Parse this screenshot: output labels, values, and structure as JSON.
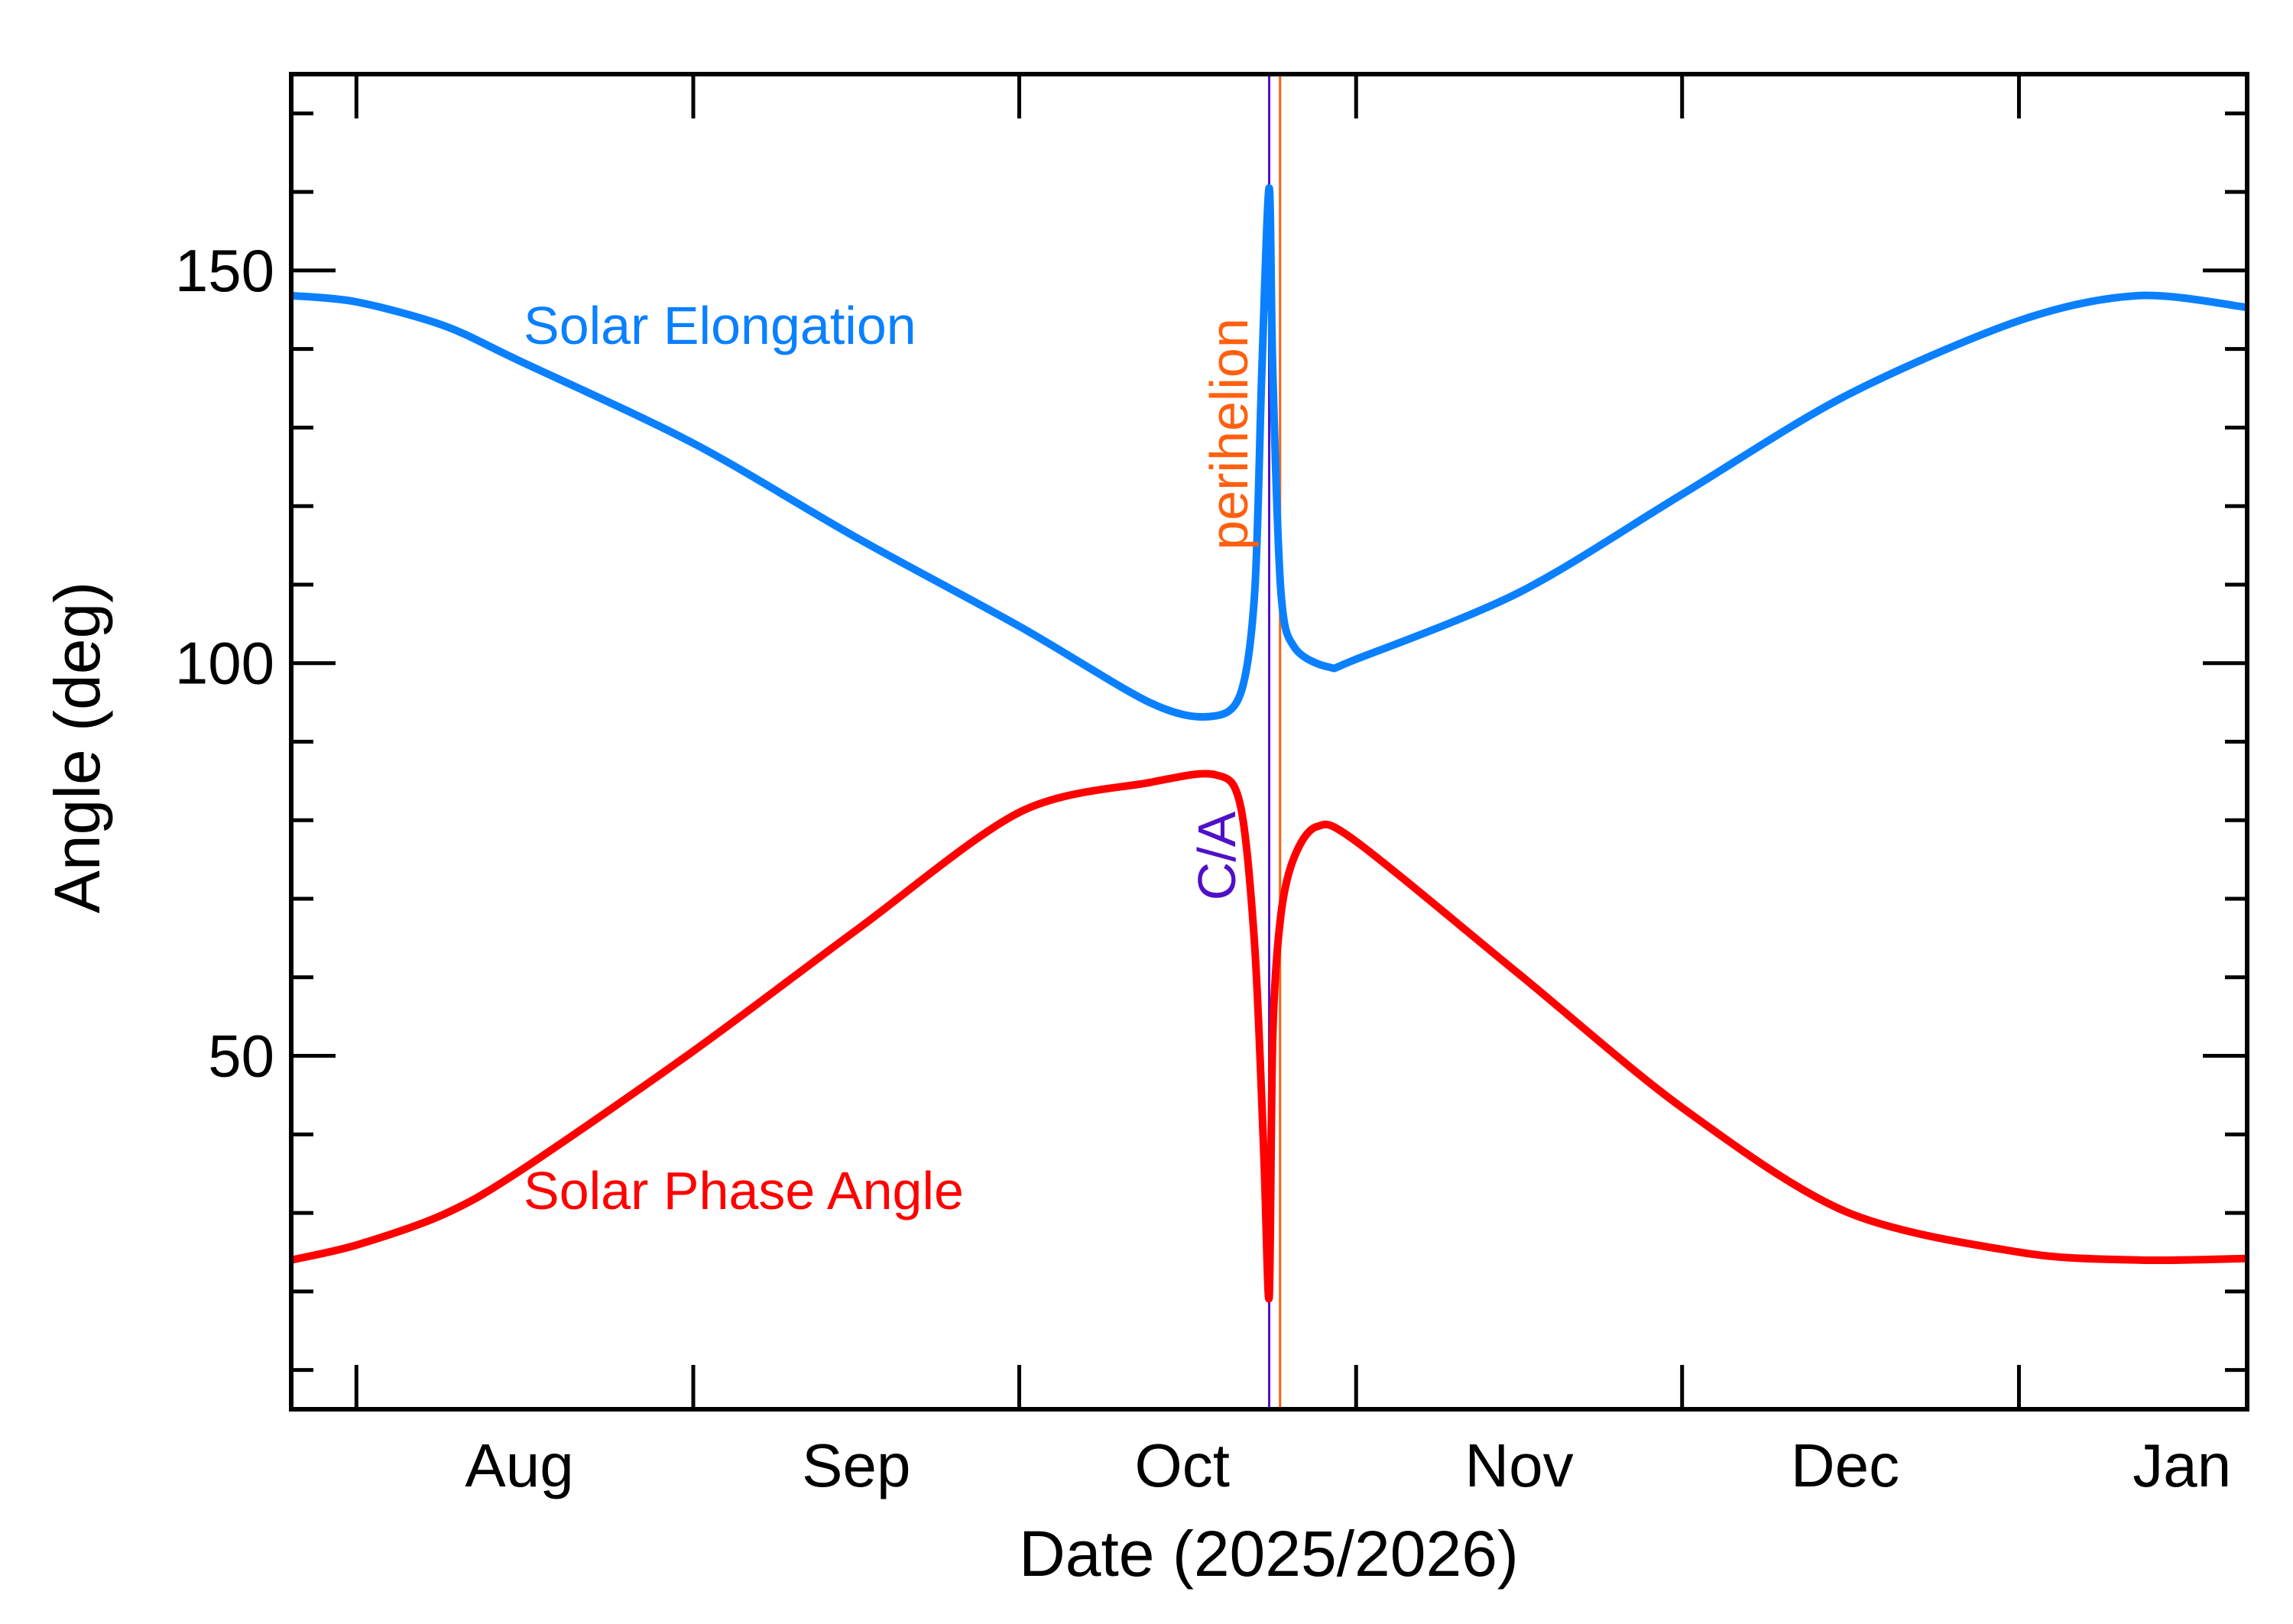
{
  "chart_data": {
    "type": "line",
    "title": "",
    "xlabel": "Date (2025/2026)",
    "ylabel": "Angle (deg)",
    "xlim": [
      "2025-07-26",
      "2026-01-22"
    ],
    "ylim": [
      5,
      175
    ],
    "grid": false,
    "x_ticks": [
      {
        "date": "2025-08-01",
        "label": "Aug"
      },
      {
        "date": "2025-09-01",
        "label": "Sep"
      },
      {
        "date": "2025-10-01",
        "label": "Oct"
      },
      {
        "date": "2025-11-01",
        "label": "Nov"
      },
      {
        "date": "2025-12-01",
        "label": "Dec"
      },
      {
        "date": "2026-01-01",
        "label": "Jan"
      }
    ],
    "y_ticks": [
      50,
      100,
      150
    ],
    "y_minor_step": 10,
    "series": [
      {
        "name": "Solar Elongation",
        "color": "#0a80ff",
        "points": [
          [
            "2025-07-26T00:00",
            146.8
          ],
          [
            "2025-08-01T00:00",
            146.0
          ],
          [
            "2025-08-09T00:00",
            143.0
          ],
          [
            "2025-08-16T00:00",
            138.5
          ],
          [
            "2025-09-01T00:00",
            128.0
          ],
          [
            "2025-09-16T00:00",
            116.0
          ],
          [
            "2025-10-01T00:00",
            104.7
          ],
          [
            "2025-10-13T00:00",
            95.0
          ],
          [
            "2025-10-18T12:00",
            93.2
          ],
          [
            "2025-10-21T08:00",
            96.0
          ],
          [
            "2025-10-22T16:00",
            109.0
          ],
          [
            "2025-10-23T08:00",
            137.6
          ],
          [
            "2025-10-24T00:00",
            160.5
          ],
          [
            "2025-10-24T08:00",
            137.0
          ],
          [
            "2025-10-25T02:00",
            109.0
          ],
          [
            "2025-10-26T08:00",
            102.0
          ],
          [
            "2025-10-29T12:00",
            99.5
          ],
          [
            "2025-11-01T00:00",
            100.5
          ],
          [
            "2025-11-16T00:00",
            109.0
          ],
          [
            "2025-12-01T00:00",
            121.5
          ],
          [
            "2025-12-16T00:00",
            134.0
          ],
          [
            "2026-01-01T00:00",
            143.6
          ],
          [
            "2026-01-12T00:00",
            146.8
          ],
          [
            "2026-01-22T00:00",
            145.3
          ]
        ]
      },
      {
        "name": "Solar Phase Angle",
        "color": "#ff0000",
        "points": [
          [
            "2025-07-26T00:00",
            24.0
          ],
          [
            "2025-08-01T00:00",
            25.9
          ],
          [
            "2025-08-09T00:00",
            29.8
          ],
          [
            "2025-08-16T00:00",
            35.3
          ],
          [
            "2025-09-01T00:00",
            50.6
          ],
          [
            "2025-09-16T00:00",
            66.0
          ],
          [
            "2025-10-01T00:00",
            81.0
          ],
          [
            "2025-10-13T00:00",
            84.8
          ],
          [
            "2025-10-19T00:00",
            85.8
          ],
          [
            "2025-10-21T08:00",
            82.0
          ],
          [
            "2025-10-22T16:00",
            64.0
          ],
          [
            "2025-10-23T12:00",
            37.8
          ],
          [
            "2025-10-24T00:00",
            19.3
          ],
          [
            "2025-10-24T08:00",
            52.8
          ],
          [
            "2025-10-25T02:00",
            68.0
          ],
          [
            "2025-10-26T08:00",
            75.4
          ],
          [
            "2025-10-28T10:00",
            79.2
          ],
          [
            "2025-11-01T00:00",
            77.3
          ],
          [
            "2025-11-16T00:00",
            60.4
          ],
          [
            "2025-12-01T00:00",
            43.4
          ],
          [
            "2025-12-16T00:00",
            30.2
          ],
          [
            "2026-01-01T00:00",
            25.0
          ],
          [
            "2026-01-12T00:00",
            24.0
          ],
          [
            "2026-01-22T00:00",
            24.2
          ]
        ]
      }
    ],
    "markers": [
      {
        "label": "C/A",
        "date": "2025-10-24T00:00",
        "color": "#5010c8"
      },
      {
        "label": "perihelion",
        "date": "2025-10-25T00:00",
        "color": "#ff6010"
      }
    ]
  }
}
